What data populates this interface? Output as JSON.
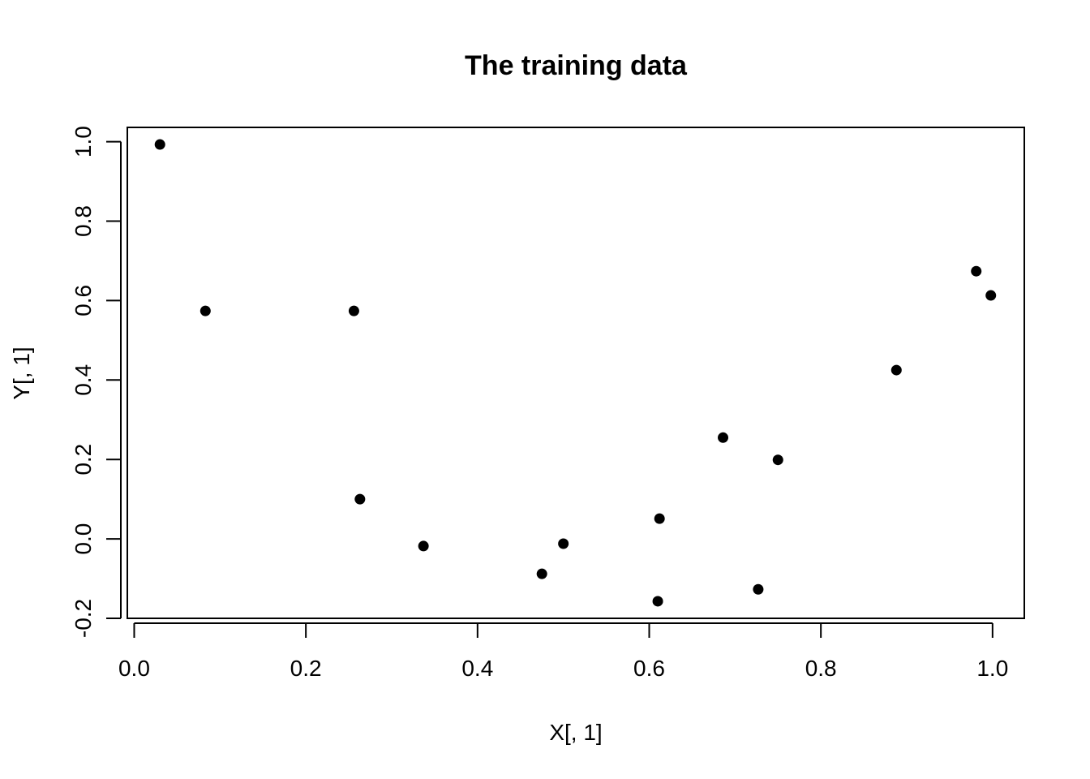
{
  "chart_data": {
    "type": "scatter",
    "title": "The training data",
    "xlabel": "X[, 1]",
    "ylabel": "Y[, 1]",
    "xlim": [
      -0.008,
      1.037
    ],
    "ylim": [
      -0.2,
      1.036
    ],
    "xticks": [
      0.0,
      0.2,
      0.4,
      0.6,
      0.8,
      1.0
    ],
    "xtick_labels": [
      "0.0",
      "0.2",
      "0.4",
      "0.6",
      "0.8",
      "1.0"
    ],
    "yticks": [
      -0.2,
      0.0,
      0.2,
      0.4,
      0.6,
      0.8,
      1.0
    ],
    "ytick_labels": [
      "-0.2",
      "0.0",
      "0.2",
      "0.4",
      "0.6",
      "0.8",
      "1.0"
    ],
    "grid": false,
    "point_color": "#000000",
    "points": [
      {
        "x": 0.03,
        "y": 0.993
      },
      {
        "x": 0.083,
        "y": 0.574
      },
      {
        "x": 0.256,
        "y": 0.574
      },
      {
        "x": 0.263,
        "y": 0.1
      },
      {
        "x": 0.337,
        "y": -0.018
      },
      {
        "x": 0.475,
        "y": -0.088
      },
      {
        "x": 0.5,
        "y": -0.012
      },
      {
        "x": 0.61,
        "y": -0.157
      },
      {
        "x": 0.612,
        "y": 0.051
      },
      {
        "x": 0.686,
        "y": 0.255
      },
      {
        "x": 0.727,
        "y": -0.127
      },
      {
        "x": 0.75,
        "y": 0.199
      },
      {
        "x": 0.888,
        "y": 0.425
      },
      {
        "x": 0.981,
        "y": 0.674
      },
      {
        "x": 0.998,
        "y": 0.613
      }
    ]
  }
}
